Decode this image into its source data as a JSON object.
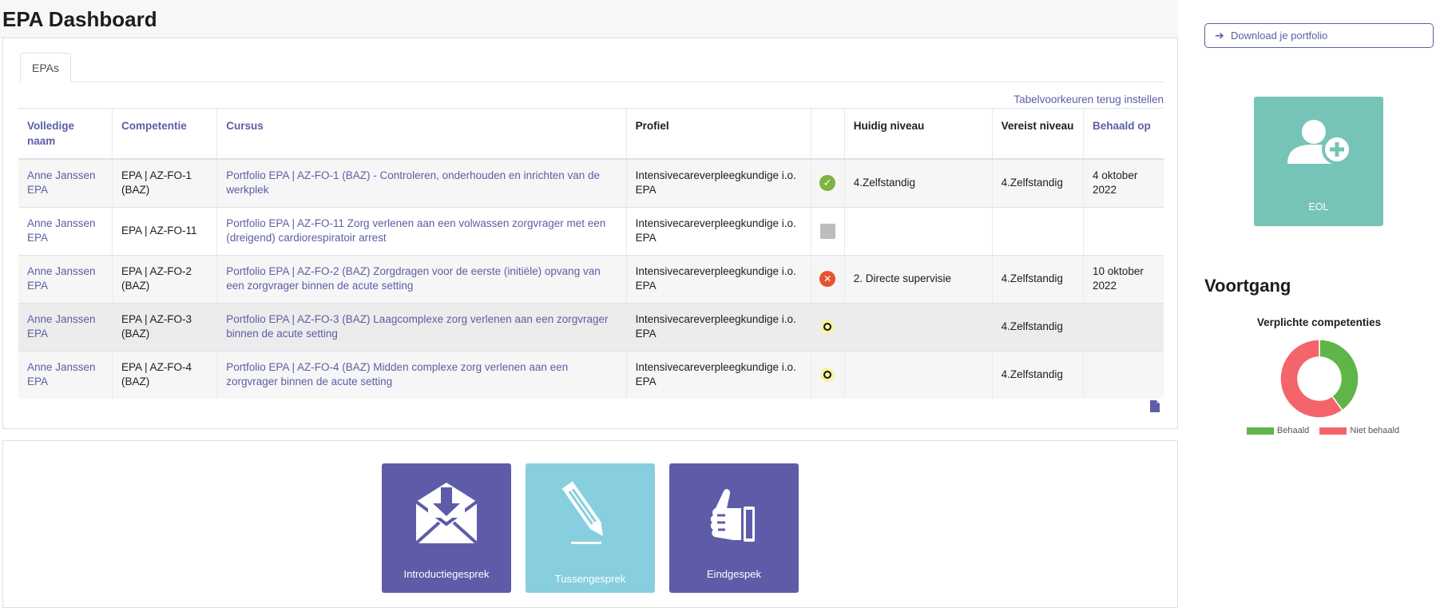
{
  "page": {
    "title": "EPA Dashboard"
  },
  "tabs": [
    {
      "label": "EPAs"
    }
  ],
  "table": {
    "reset_link": "Tabelvoorkeuren terug instellen",
    "columns": [
      "Volledige naam",
      "Competentie",
      "Cursus",
      "Profiel",
      "",
      "Huidig niveau",
      "Vereist niveau",
      "Behaald op"
    ],
    "rows": [
      {
        "name": "Anne Janssen EPA",
        "competence": "EPA | AZ-FO-1 (BAZ)",
        "course": "Portfolio EPA | AZ-FO-1 (BAZ) - Controleren, onderhouden en inrichten van de werkplek",
        "profile": "Intensivecareverpleegkundige i.o. EPA",
        "status": "achieved",
        "current": "4.Zelfstandig",
        "required": "4.Zelfstandig",
        "date": "4 oktober 2022"
      },
      {
        "name": "Anne Janssen EPA",
        "competence": "EPA | AZ-FO-11",
        "course": "Portfolio EPA | AZ-FO-11 Zorg verlenen aan een volwassen zorgvrager met een (dreigend) cardiorespiratoir arrest",
        "profile": "Intensivecareverpleegkundige i.o. EPA",
        "status": "none",
        "current": "",
        "required": "",
        "date": ""
      },
      {
        "name": "Anne Janssen EPA",
        "competence": "EPA | AZ-FO-2 (BAZ)",
        "course": "Portfolio EPA | AZ-FO-2 (BAZ) Zorgdragen voor de eerste (initiële) opvang van een zorgvrager binnen de acute setting",
        "profile": "Intensivecareverpleegkundige i.o. EPA",
        "status": "not-achieved",
        "current": "2. Directe supervisie",
        "required": "4.Zelfstandig",
        "date": "10 oktober 2022"
      },
      {
        "name": "Anne Janssen EPA",
        "competence": "EPA | AZ-FO-3 (BAZ)",
        "course": "Portfolio EPA | AZ-FO-3 (BAZ) Laagcomplexe zorg verlenen aan een zorgvrager binnen de acute setting",
        "profile": "Intensivecareverpleegkundige i.o. EPA",
        "status": "open",
        "current": "",
        "required": "4.Zelfstandig",
        "date": ""
      },
      {
        "name": "Anne Janssen EPA",
        "competence": "EPA | AZ-FO-4 (BAZ)",
        "course": "Portfolio EPA | AZ-FO-4 (BAZ) Midden complexe zorg verlenen aan een zorgvrager binnen de acute setting",
        "profile": "Intensivecareverpleegkundige i.o. EPA",
        "status": "open",
        "current": "",
        "required": "4.Zelfstandig",
        "date": ""
      }
    ]
  },
  "tiles": [
    {
      "label": "Introductiegesprek",
      "icon": "envelope-download-icon"
    },
    {
      "label": "Tussengesprek",
      "icon": "pencil-icon"
    },
    {
      "label": "Eindgespek",
      "icon": "thumbs-up-icon"
    }
  ],
  "sidebar": {
    "download_label": "Download je portfolio",
    "eol_label": "EOL",
    "progress_title": "Voortgang",
    "chart_title": "Verplichte competenties",
    "legend": [
      {
        "label": "Behaald",
        "color": "#5fb548"
      },
      {
        "label": "Niet behaald",
        "color": "#f4646b"
      }
    ]
  },
  "chart_data": {
    "type": "pie",
    "title": "Verplichte competenties",
    "categories": [
      "Behaald",
      "Niet behaald"
    ],
    "values": [
      2,
      3
    ],
    "colors": [
      "#5fb548",
      "#f4646b"
    ],
    "legend": "bottom"
  },
  "colors": {
    "accent": "#5c5ea6",
    "tile_purple": "#5e5ca8",
    "tile_light": "#87cfdf",
    "tile_green": "#75c4b7"
  }
}
